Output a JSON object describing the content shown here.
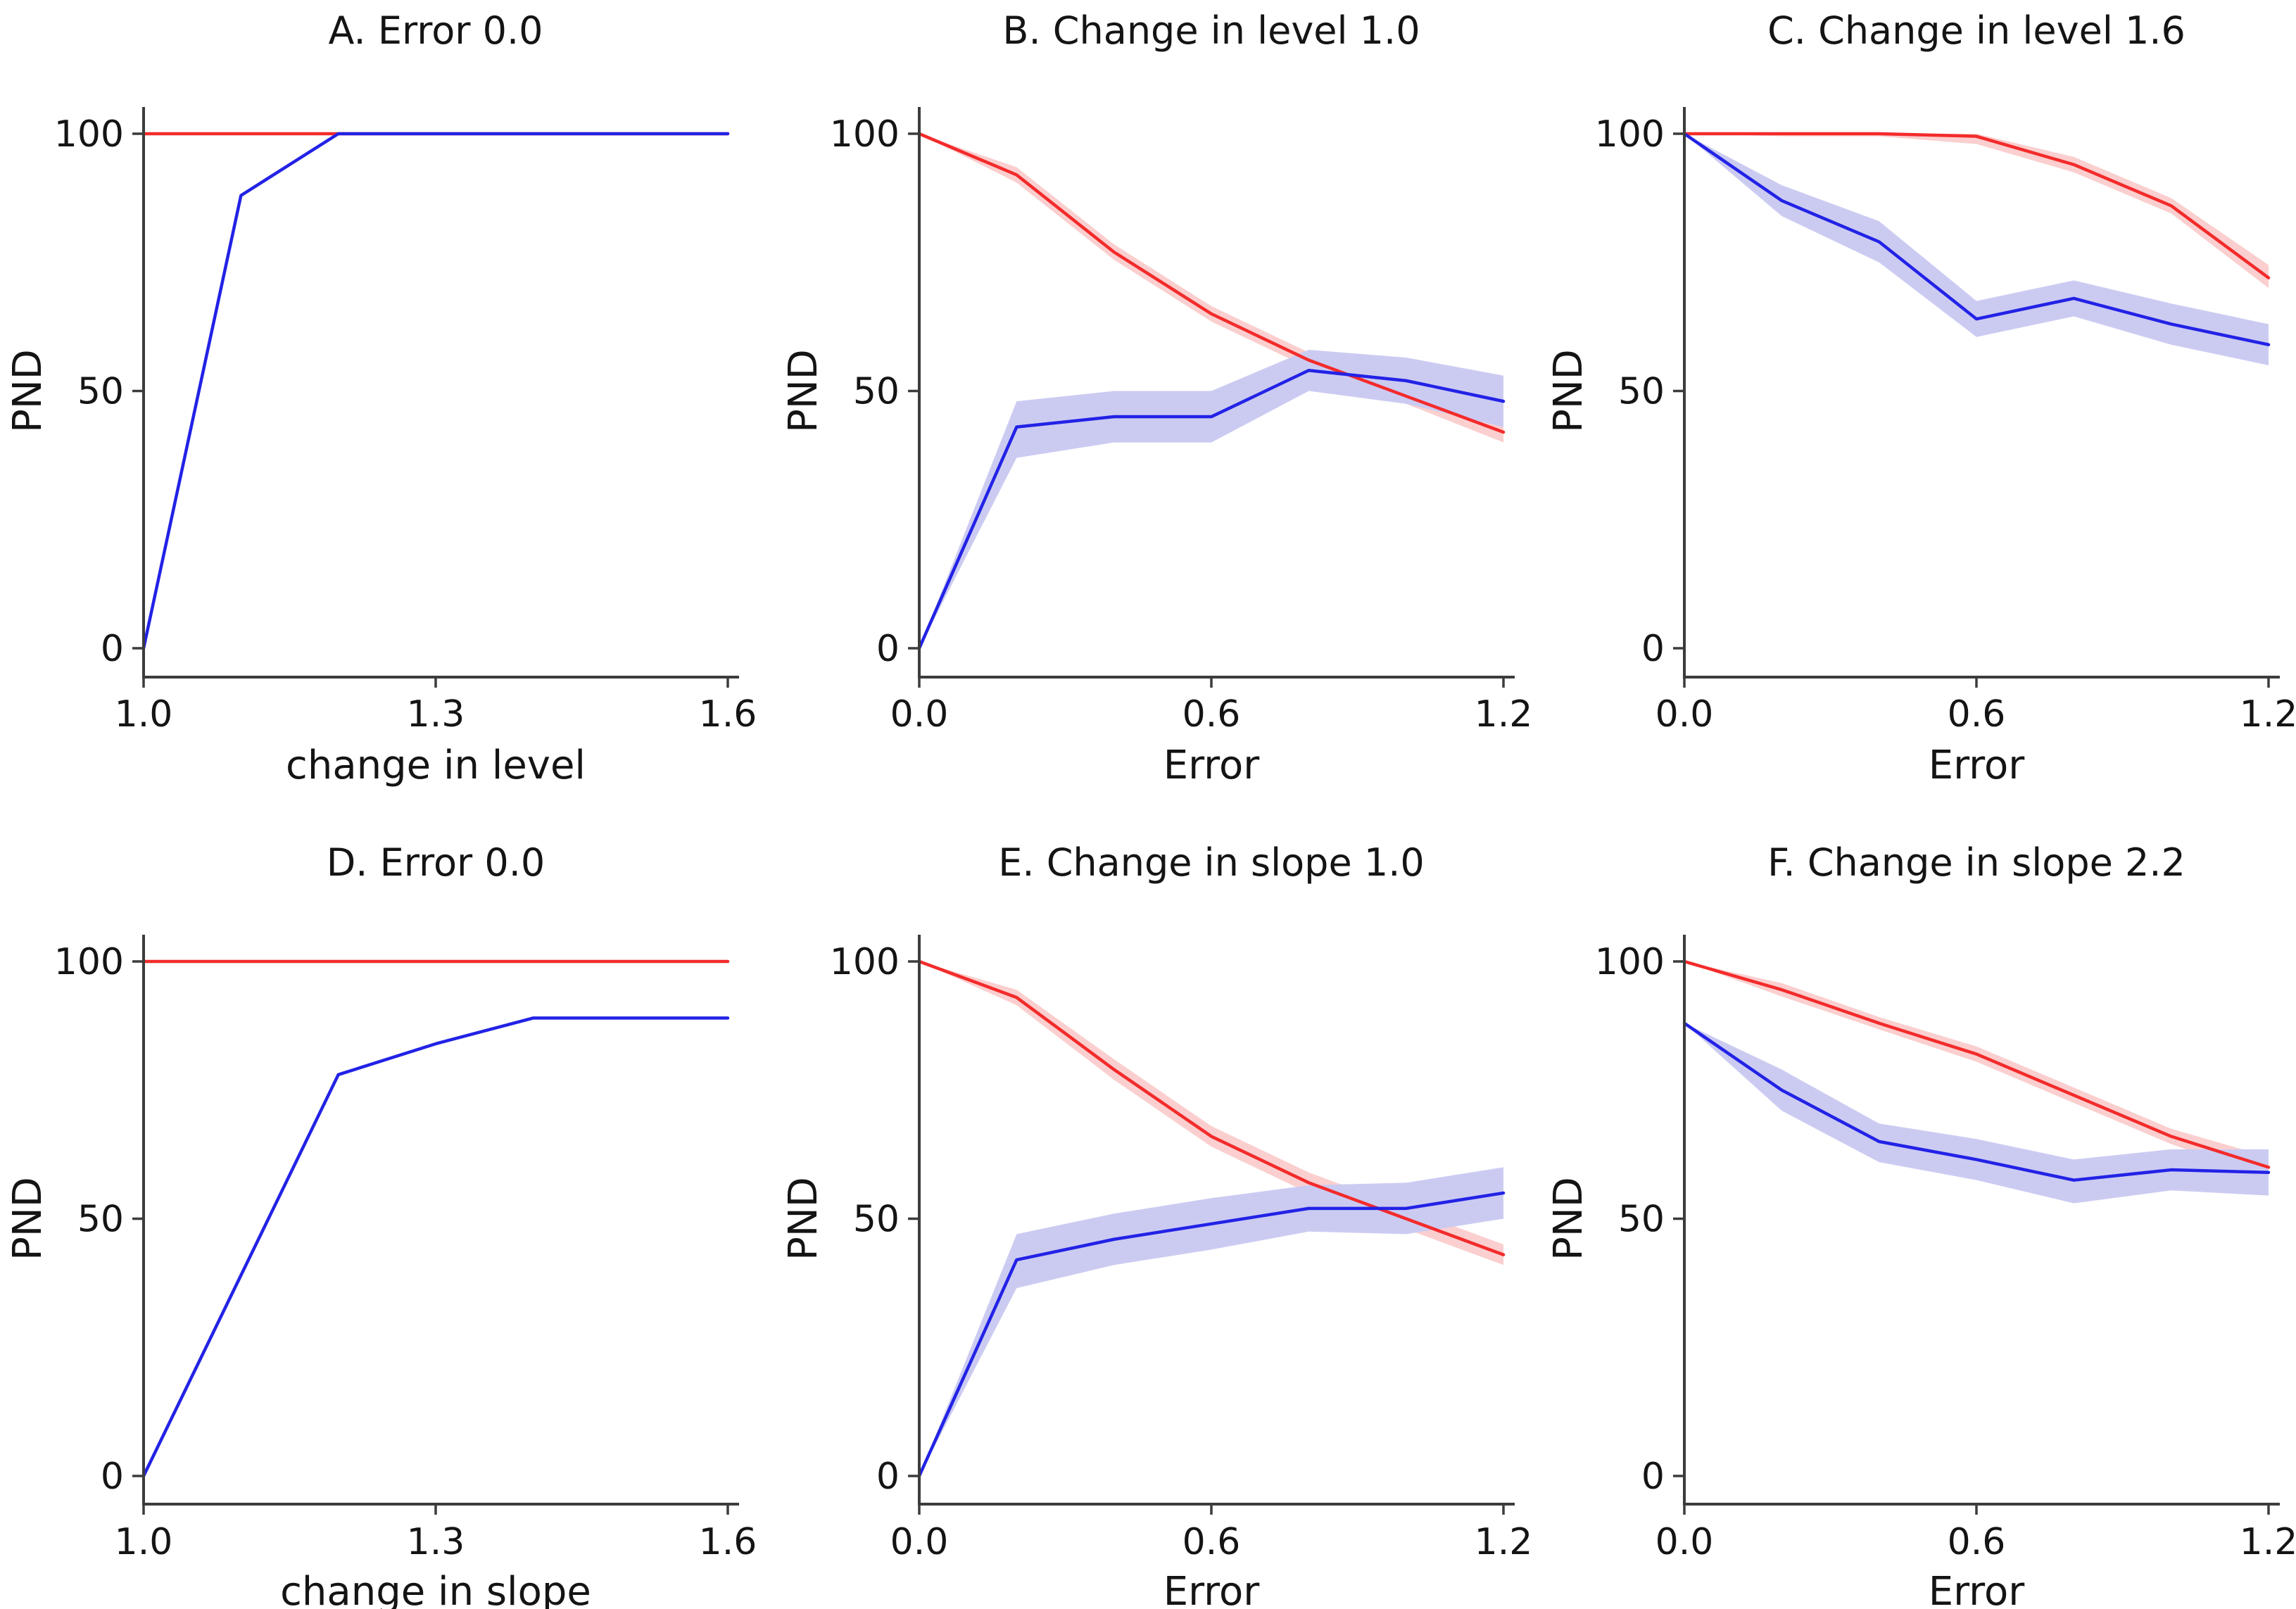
{
  "figure": {
    "background": "#ffffff",
    "text_color": "#141414",
    "axis_color": "#3c3c3c"
  },
  "colors": {
    "red_line": "#f32b2b",
    "blue_line": "#2222e6",
    "red_band": "#fbcfcf",
    "blue_band": "#cbcbf2"
  },
  "chart_data": [
    {
      "id": "A",
      "type": "line",
      "title": "A. Error 0.0",
      "xlabel": "change in level",
      "ylabel": "PND",
      "x": [
        1.0,
        1.1,
        1.2,
        1.3,
        1.4,
        1.5,
        1.6
      ],
      "xticks": [
        1.0,
        1.3,
        1.6
      ],
      "xtick_labels": [
        "1.0",
        "1.3",
        "1.6"
      ],
      "yticks": [
        0,
        50,
        100
      ],
      "ytick_labels": [
        "0",
        "50",
        "100"
      ],
      "xlim": [
        1.0,
        1.6
      ],
      "ylim": [
        0,
        100
      ],
      "grid": false,
      "series": [
        {
          "name": "red",
          "color": "#f32b2b",
          "values": [
            100,
            100,
            100,
            100,
            100,
            100,
            100
          ]
        },
        {
          "name": "blue",
          "color": "#2222e6",
          "values": [
            0,
            88,
            100,
            100,
            100,
            100,
            100
          ]
        }
      ]
    },
    {
      "id": "B",
      "type": "line",
      "title": "B. Change in level 1.0",
      "xlabel": "Error",
      "ylabel": "PND",
      "x": [
        0.0,
        0.2,
        0.4,
        0.6,
        0.8,
        1.0,
        1.2
      ],
      "xticks": [
        0.0,
        0.6,
        1.2
      ],
      "xtick_labels": [
        "0.0",
        "0.6",
        "1.2"
      ],
      "yticks": [
        0,
        50,
        100
      ],
      "ytick_labels": [
        "0",
        "50",
        "100"
      ],
      "xlim": [
        0.0,
        1.2
      ],
      "ylim": [
        0,
        100
      ],
      "grid": false,
      "series": [
        {
          "name": "red",
          "color": "#f32b2b",
          "values": [
            100,
            92,
            77,
            65,
            56,
            49,
            42
          ],
          "band": {
            "color": "#fbcfcf",
            "lo": [
              100,
              90.5,
              75.5,
              63.5,
              54.5,
              47.5,
              40
            ],
            "hi": [
              100,
              93.5,
              78.5,
              66.5,
              57.5,
              50.5,
              44
            ]
          }
        },
        {
          "name": "blue",
          "color": "#2222e6",
          "values": [
            0,
            43,
            45,
            45,
            54,
            52,
            48
          ],
          "band": {
            "color": "#cbcbf2",
            "lo": [
              0,
              37,
              40,
              40,
              50,
              47.5,
              43
            ],
            "hi": [
              0,
              48,
              50,
              50,
              58,
              56.5,
              53
            ]
          }
        }
      ]
    },
    {
      "id": "C",
      "type": "line",
      "title": "C. Change in level 1.6",
      "xlabel": "Error",
      "ylabel": "PND",
      "x": [
        0.0,
        0.2,
        0.4,
        0.6,
        0.8,
        1.0,
        1.2
      ],
      "xticks": [
        0.0,
        0.6,
        1.2
      ],
      "xtick_labels": [
        "0.0",
        "0.6",
        "1.2"
      ],
      "yticks": [
        0,
        50,
        100
      ],
      "ytick_labels": [
        "0",
        "50",
        "100"
      ],
      "xlim": [
        0.0,
        1.2
      ],
      "ylim": [
        0,
        100
      ],
      "grid": false,
      "series": [
        {
          "name": "red",
          "color": "#f32b2b",
          "values": [
            100,
            100,
            100,
            99.5,
            94,
            86,
            72
          ],
          "band": {
            "color": "#fbcfcf",
            "lo": [
              100,
              99.5,
              99.5,
              98,
              92.5,
              84.5,
              70
            ],
            "hi": [
              100,
              100,
              100,
              100,
              95.5,
              87.5,
              74.5
            ]
          }
        },
        {
          "name": "blue",
          "color": "#2222e6",
          "values": [
            100,
            87,
            79,
            64,
            68,
            63,
            59
          ],
          "band": {
            "color": "#cbcbf2",
            "lo": [
              100,
              84,
              75,
              60.5,
              64.5,
              59,
              55
            ],
            "hi": [
              100,
              90,
              83,
              67.5,
              71.5,
              67,
              63
            ]
          }
        }
      ]
    },
    {
      "id": "D",
      "type": "line",
      "title": "D. Error 0.0",
      "xlabel": "change in slope",
      "ylabel": "PND",
      "x": [
        1.0,
        1.1,
        1.2,
        1.3,
        1.4,
        1.5,
        1.6
      ],
      "xticks": [
        1.0,
        1.3,
        1.6
      ],
      "xtick_labels": [
        "1.0",
        "1.3",
        "1.6"
      ],
      "yticks": [
        0,
        50,
        100
      ],
      "ytick_labels": [
        "0",
        "50",
        "100"
      ],
      "xlim": [
        1.0,
        1.6
      ],
      "ylim": [
        0,
        100
      ],
      "grid": false,
      "series": [
        {
          "name": "red",
          "color": "#f32b2b",
          "values": [
            100,
            100,
            100,
            100,
            100,
            100,
            100
          ]
        },
        {
          "name": "blue",
          "color": "#2222e6",
          "values": [
            0,
            39,
            78,
            84,
            89,
            89,
            89
          ]
        }
      ]
    },
    {
      "id": "E",
      "type": "line",
      "title": "E. Change in slope 1.0",
      "xlabel": "Error",
      "ylabel": "PND",
      "x": [
        0.0,
        0.2,
        0.4,
        0.6,
        0.8,
        1.0,
        1.2
      ],
      "xticks": [
        0.0,
        0.6,
        1.2
      ],
      "xtick_labels": [
        "0.0",
        "0.6",
        "1.2"
      ],
      "yticks": [
        0,
        50,
        100
      ],
      "ytick_labels": [
        "0",
        "50",
        "100"
      ],
      "xlim": [
        0.0,
        1.2
      ],
      "ylim": [
        0,
        100
      ],
      "grid": false,
      "series": [
        {
          "name": "red",
          "color": "#f32b2b",
          "values": [
            100,
            93,
            79,
            66,
            57,
            50,
            43
          ],
          "band": {
            "color": "#fbcfcf",
            "lo": [
              100,
              91.5,
              77,
              64,
              55,
              48,
              41
            ],
            "hi": [
              100,
              94.5,
              81,
              68,
              59,
              52,
              45
            ]
          }
        },
        {
          "name": "blue",
          "color": "#2222e6",
          "values": [
            0,
            42,
            46,
            49,
            52,
            52,
            55
          ],
          "band": {
            "color": "#cbcbf2",
            "lo": [
              0,
              36.5,
              41,
              44,
              47.5,
              47,
              50
            ],
            "hi": [
              0,
              47,
              51,
              54,
              56.5,
              57,
              60
            ]
          }
        }
      ]
    },
    {
      "id": "F",
      "type": "line",
      "title": "F. Change in slope 2.2",
      "xlabel": "Error",
      "ylabel": "PND",
      "x": [
        0.0,
        0.2,
        0.4,
        0.6,
        0.8,
        1.0,
        1.2
      ],
      "xticks": [
        0.0,
        0.6,
        1.2
      ],
      "xtick_labels": [
        "0.0",
        "0.6",
        "1.2"
      ],
      "yticks": [
        0,
        50,
        100
      ],
      "ytick_labels": [
        "0",
        "50",
        "100"
      ],
      "xlim": [
        0.0,
        1.2
      ],
      "ylim": [
        0,
        100
      ],
      "grid": false,
      "series": [
        {
          "name": "red",
          "color": "#f32b2b",
          "values": [
            100,
            94.5,
            88,
            82,
            74,
            66,
            60
          ],
          "band": {
            "color": "#fbcfcf",
            "lo": [
              100,
              93.2,
              86.8,
              80.5,
              72.5,
              64.5,
              58
            ],
            "hi": [
              100,
              95.8,
              89.2,
              83.5,
              75.5,
              67.5,
              62
            ]
          }
        },
        {
          "name": "blue",
          "color": "#2222e6",
          "values": [
            88,
            75,
            65,
            61.5,
            57.5,
            59.5,
            59
          ],
          "band": {
            "color": "#cbcbf2",
            "lo": [
              88,
              71,
              61,
              57.5,
              53,
              55.5,
              54.5
            ],
            "hi": [
              88,
              79,
              68.5,
              65.5,
              61.5,
              63.5,
              63.5
            ]
          }
        }
      ]
    }
  ]
}
